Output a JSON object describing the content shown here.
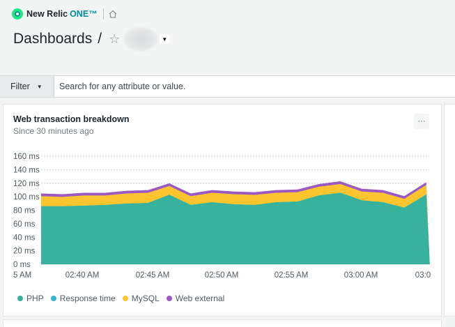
{
  "nav": {
    "brand": "New Relic",
    "brand_suffix": "ONE™"
  },
  "header": {
    "title": "Dashboards",
    "separator": "/"
  },
  "filter": {
    "button_label": "Filter",
    "placeholder": "Search for any attribute or value."
  },
  "widget": {
    "title": "Web transaction breakdown",
    "subtitle": "Since 30 minutes ago",
    "more_label": "···"
  },
  "colors": {
    "php": "#37b39d",
    "response_time": "#2fb6d1",
    "mysql": "#fcc530",
    "web_external": "#9b59c2"
  },
  "chart_data": {
    "type": "area",
    "stacked": true,
    "x": [
      "02:35",
      "02:37",
      "02:39",
      "02:41",
      "02:43",
      "02:44",
      "02:46",
      "02:48",
      "02:49",
      "02:51",
      "02:53",
      "02:54",
      "02:56",
      "02:58",
      "02:59",
      "03:01",
      "03:03",
      "03:04",
      "03:06"
    ],
    "x_tick_labels": [
      "5 AM",
      "02:40 AM",
      "02:45 AM",
      "02:50 AM",
      "02:55 AM",
      "03:00 AM",
      "03:0"
    ],
    "y_tick_labels": [
      "0 ms",
      "20 ms",
      "40 ms",
      "60 ms",
      "80 ms",
      "100 ms",
      "120 ms",
      "140 ms",
      "160 ms"
    ],
    "ylim": [
      0,
      160
    ],
    "series": [
      {
        "name": "PHP",
        "values": [
          85,
          85,
          86,
          87,
          89,
          90,
          102,
          87,
          91,
          88,
          87,
          91,
          92,
          101,
          105,
          94,
          91,
          83,
          101
        ]
      },
      {
        "name": "Response time",
        "values": [
          0,
          0,
          0,
          0,
          0,
          0,
          0,
          0,
          0,
          0,
          0,
          0,
          0,
          0,
          0,
          0,
          0,
          0,
          1
        ]
      },
      {
        "name": "MySQL",
        "values": [
          15,
          14,
          15,
          14,
          15,
          15,
          13,
          13,
          14,
          15,
          15,
          14,
          14,
          13,
          13,
          13,
          14,
          13,
          14
        ]
      },
      {
        "name": "Web external",
        "values": [
          4,
          4,
          4,
          4,
          4,
          4,
          4,
          4,
          4,
          4,
          4,
          4,
          4,
          4,
          4,
          4,
          4,
          4,
          4
        ]
      }
    ],
    "legend_position": "bottom-left",
    "grid": true
  }
}
